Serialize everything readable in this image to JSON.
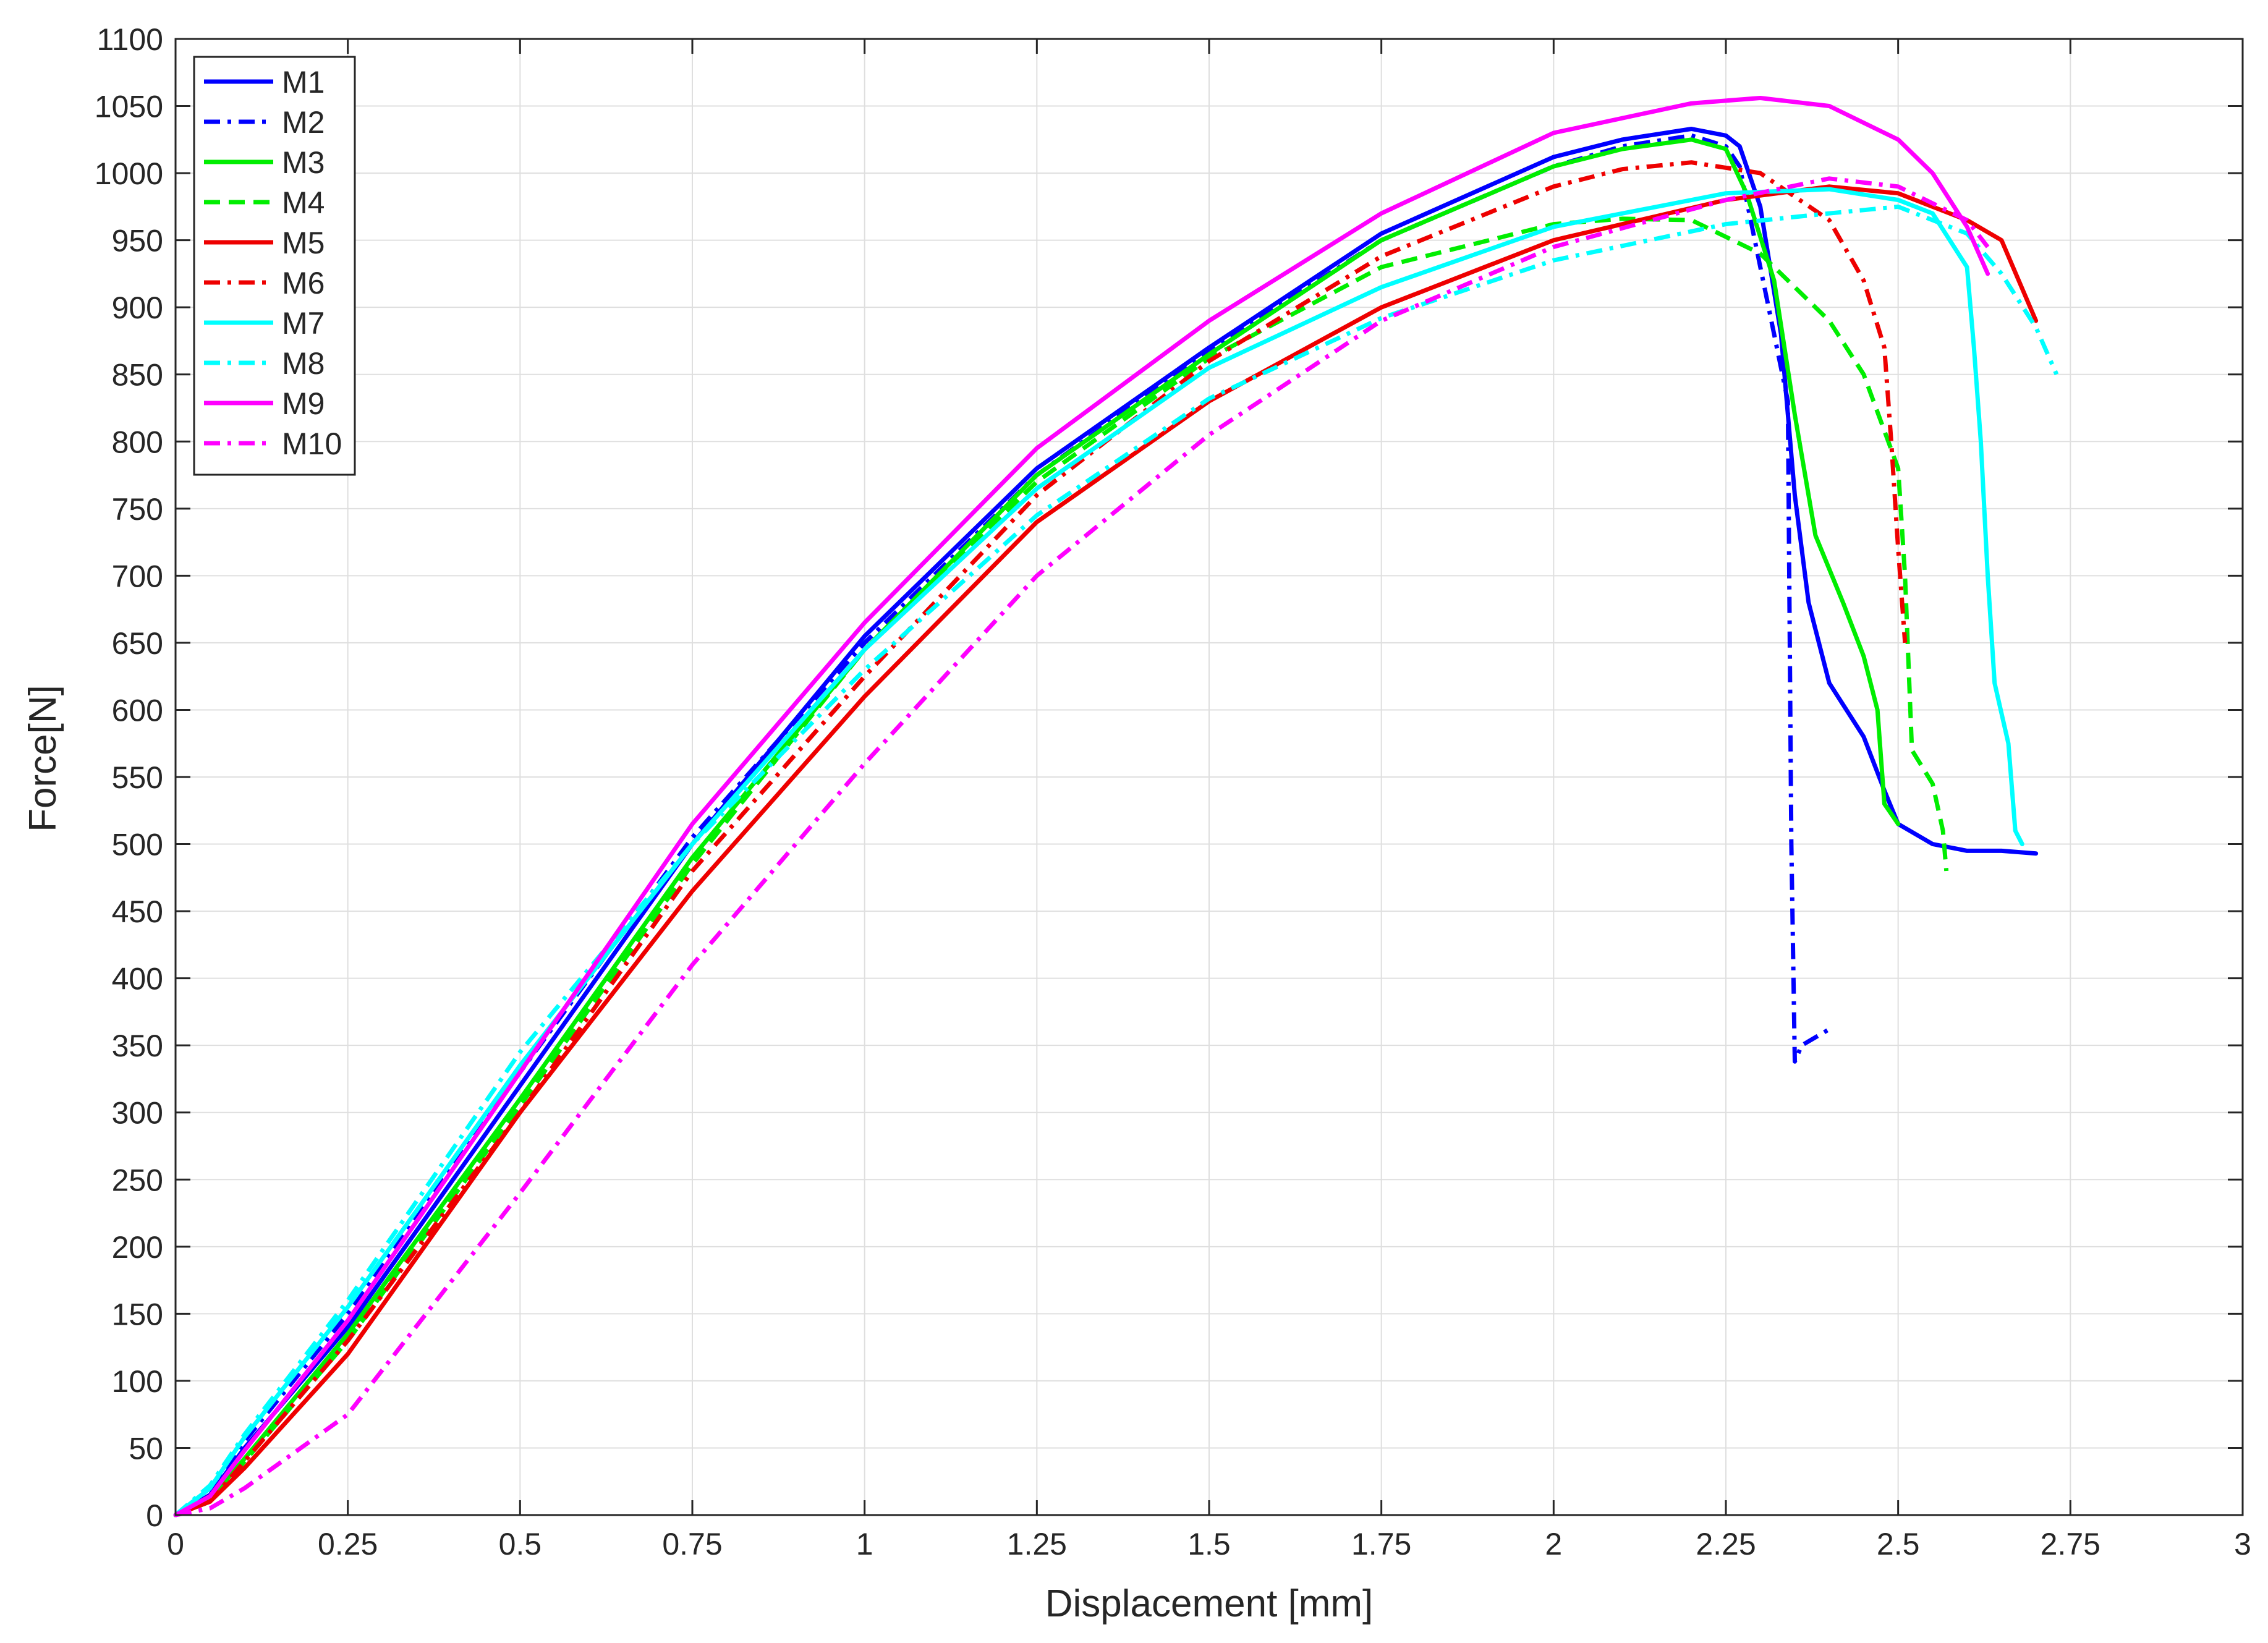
{
  "chart_data": {
    "type": "line",
    "title": "",
    "xlabel": "Displacement [mm]",
    "ylabel": "Force[N]",
    "xlim": [
      0,
      3
    ],
    "ylim": [
      0,
      1100
    ],
    "xticks": [
      "0",
      "0.25",
      "0.5",
      "0.75",
      "1",
      "1.25",
      "1.5",
      "1.75",
      "2",
      "2.25",
      "2.5",
      "2.75",
      "3"
    ],
    "yticks": [
      "0",
      "50",
      "100",
      "150",
      "200",
      "250",
      "300",
      "350",
      "400",
      "450",
      "500",
      "550",
      "600",
      "650",
      "700",
      "750",
      "800",
      "850",
      "900",
      "950",
      "1000",
      "1050",
      "1100"
    ],
    "grid": true,
    "legend_position": "top-left",
    "series": [
      {
        "name": "M1",
        "color": "#0000ff",
        "dash": "solid",
        "points": [
          [
            0,
            0
          ],
          [
            0.05,
            15
          ],
          [
            0.1,
            50
          ],
          [
            0.25,
            140
          ],
          [
            0.5,
            320
          ],
          [
            0.75,
            500
          ],
          [
            1,
            655
          ],
          [
            1.25,
            780
          ],
          [
            1.5,
            870
          ],
          [
            1.75,
            955
          ],
          [
            2,
            1012
          ],
          [
            2.1,
            1025
          ],
          [
            2.2,
            1033
          ],
          [
            2.25,
            1028
          ],
          [
            2.27,
            1020
          ],
          [
            2.3,
            975
          ],
          [
            2.33,
            880
          ],
          [
            2.35,
            760
          ],
          [
            2.37,
            680
          ],
          [
            2.4,
            620
          ],
          [
            2.45,
            580
          ],
          [
            2.48,
            540
          ],
          [
            2.5,
            515
          ],
          [
            2.55,
            500
          ],
          [
            2.6,
            495
          ],
          [
            2.65,
            495
          ],
          [
            2.7,
            493
          ]
        ]
      },
      {
        "name": "M2",
        "color": "#0000ff",
        "dash": "dashdot",
        "points": [
          [
            0,
            0
          ],
          [
            0.05,
            20
          ],
          [
            0.1,
            55
          ],
          [
            0.25,
            150
          ],
          [
            0.5,
            330
          ],
          [
            0.75,
            505
          ],
          [
            1,
            650
          ],
          [
            1.25,
            775
          ],
          [
            1.5,
            868
          ],
          [
            1.75,
            950
          ],
          [
            2,
            1005
          ],
          [
            2.1,
            1020
          ],
          [
            2.2,
            1028
          ],
          [
            2.25,
            1020
          ],
          [
            2.27,
            1005
          ],
          [
            2.3,
            930
          ],
          [
            2.32,
            880
          ],
          [
            2.34,
            830
          ],
          [
            2.345,
            500
          ],
          [
            2.35,
            338
          ],
          [
            2.36,
            350
          ],
          [
            2.4,
            362
          ]
        ]
      },
      {
        "name": "M3",
        "color": "#00ee00",
        "dash": "solid",
        "points": [
          [
            0,
            0
          ],
          [
            0.05,
            12
          ],
          [
            0.1,
            42
          ],
          [
            0.25,
            135
          ],
          [
            0.5,
            310
          ],
          [
            0.75,
            490
          ],
          [
            1,
            645
          ],
          [
            1.25,
            775
          ],
          [
            1.5,
            865
          ],
          [
            1.75,
            950
          ],
          [
            2,
            1005
          ],
          [
            2.1,
            1018
          ],
          [
            2.2,
            1025
          ],
          [
            2.25,
            1018
          ],
          [
            2.28,
            985
          ],
          [
            2.32,
            920
          ],
          [
            2.35,
            820
          ],
          [
            2.38,
            730
          ],
          [
            2.42,
            680
          ],
          [
            2.45,
            640
          ],
          [
            2.47,
            600
          ],
          [
            2.48,
            530
          ],
          [
            2.5,
            515
          ]
        ]
      },
      {
        "name": "M4",
        "color": "#00ee00",
        "dash": "dash",
        "points": [
          [
            0,
            0
          ],
          [
            0.05,
            10
          ],
          [
            0.1,
            40
          ],
          [
            0.25,
            130
          ],
          [
            0.5,
            305
          ],
          [
            0.75,
            485
          ],
          [
            1,
            645
          ],
          [
            1.25,
            770
          ],
          [
            1.5,
            862
          ],
          [
            1.75,
            930
          ],
          [
            2,
            962
          ],
          [
            2.1,
            966
          ],
          [
            2.2,
            965
          ],
          [
            2.3,
            940
          ],
          [
            2.4,
            890
          ],
          [
            2.45,
            850
          ],
          [
            2.5,
            780
          ],
          [
            2.51,
            700
          ],
          [
            2.52,
            570
          ],
          [
            2.55,
            545
          ],
          [
            2.565,
            510
          ],
          [
            2.57,
            480
          ]
        ]
      },
      {
        "name": "M5",
        "color": "#ee0000",
        "dash": "solid",
        "points": [
          [
            0,
            0
          ],
          [
            0.05,
            10
          ],
          [
            0.1,
            35
          ],
          [
            0.25,
            120
          ],
          [
            0.5,
            300
          ],
          [
            0.75,
            465
          ],
          [
            1,
            610
          ],
          [
            1.25,
            740
          ],
          [
            1.5,
            830
          ],
          [
            1.75,
            900
          ],
          [
            2,
            950
          ],
          [
            2.25,
            980
          ],
          [
            2.4,
            990
          ],
          [
            2.5,
            985
          ],
          [
            2.6,
            965
          ],
          [
            2.65,
            950
          ],
          [
            2.7,
            890
          ]
        ]
      },
      {
        "name": "M6",
        "color": "#ee0000",
        "dash": "dashdot",
        "points": [
          [
            0,
            0
          ],
          [
            0.05,
            10
          ],
          [
            0.1,
            40
          ],
          [
            0.25,
            130
          ],
          [
            0.5,
            300
          ],
          [
            0.75,
            480
          ],
          [
            1,
            625
          ],
          [
            1.25,
            760
          ],
          [
            1.5,
            860
          ],
          [
            1.75,
            938
          ],
          [
            2,
            990
          ],
          [
            2.1,
            1003
          ],
          [
            2.2,
            1008
          ],
          [
            2.3,
            1000
          ],
          [
            2.4,
            965
          ],
          [
            2.45,
            920
          ],
          [
            2.48,
            870
          ],
          [
            2.49,
            800
          ],
          [
            2.5,
            720
          ],
          [
            2.51,
            650
          ]
        ]
      },
      {
        "name": "M7",
        "color": "#00ffff",
        "dash": "solid",
        "points": [
          [
            0,
            0
          ],
          [
            0.05,
            20
          ],
          [
            0.1,
            58
          ],
          [
            0.25,
            155
          ],
          [
            0.5,
            335
          ],
          [
            0.75,
            500
          ],
          [
            1,
            645
          ],
          [
            1.25,
            765
          ],
          [
            1.5,
            855
          ],
          [
            1.75,
            915
          ],
          [
            2,
            960
          ],
          [
            2.25,
            985
          ],
          [
            2.4,
            988
          ],
          [
            2.5,
            980
          ],
          [
            2.55,
            970
          ],
          [
            2.6,
            930
          ],
          [
            2.61,
            870
          ],
          [
            2.62,
            800
          ],
          [
            2.63,
            700
          ],
          [
            2.64,
            620
          ],
          [
            2.66,
            575
          ],
          [
            2.67,
            510
          ],
          [
            2.68,
            500
          ]
        ]
      },
      {
        "name": "M8",
        "color": "#00ffff",
        "dash": "dashdot",
        "points": [
          [
            0,
            0
          ],
          [
            0.05,
            22
          ],
          [
            0.1,
            60
          ],
          [
            0.25,
            160
          ],
          [
            0.5,
            345
          ],
          [
            0.75,
            500
          ],
          [
            1,
            630
          ],
          [
            1.25,
            745
          ],
          [
            1.5,
            832
          ],
          [
            1.75,
            892
          ],
          [
            2,
            935
          ],
          [
            2.25,
            962
          ],
          [
            2.4,
            970
          ],
          [
            2.5,
            975
          ],
          [
            2.6,
            955
          ],
          [
            2.65,
            925
          ],
          [
            2.7,
            885
          ],
          [
            2.73,
            850
          ]
        ]
      },
      {
        "name": "M9",
        "color": "#ff00ff",
        "dash": "solid",
        "points": [
          [
            0,
            0
          ],
          [
            0.05,
            14
          ],
          [
            0.1,
            48
          ],
          [
            0.25,
            145
          ],
          [
            0.5,
            330
          ],
          [
            0.75,
            515
          ],
          [
            1,
            665
          ],
          [
            1.25,
            795
          ],
          [
            1.5,
            890
          ],
          [
            1.75,
            970
          ],
          [
            2,
            1030
          ],
          [
            2.2,
            1052
          ],
          [
            2.3,
            1056
          ],
          [
            2.4,
            1050
          ],
          [
            2.5,
            1025
          ],
          [
            2.55,
            1000
          ],
          [
            2.6,
            960
          ],
          [
            2.63,
            925
          ]
        ]
      },
      {
        "name": "M10",
        "color": "#ff00ff",
        "dash": "dashdot",
        "points": [
          [
            0,
            0
          ],
          [
            0.05,
            5
          ],
          [
            0.1,
            20
          ],
          [
            0.25,
            75
          ],
          [
            0.5,
            240
          ],
          [
            0.75,
            410
          ],
          [
            1,
            560
          ],
          [
            1.25,
            700
          ],
          [
            1.5,
            805
          ],
          [
            1.75,
            890
          ],
          [
            2,
            945
          ],
          [
            2.25,
            980
          ],
          [
            2.4,
            996
          ],
          [
            2.5,
            990
          ],
          [
            2.6,
            965
          ],
          [
            2.63,
            945
          ]
        ]
      }
    ]
  }
}
